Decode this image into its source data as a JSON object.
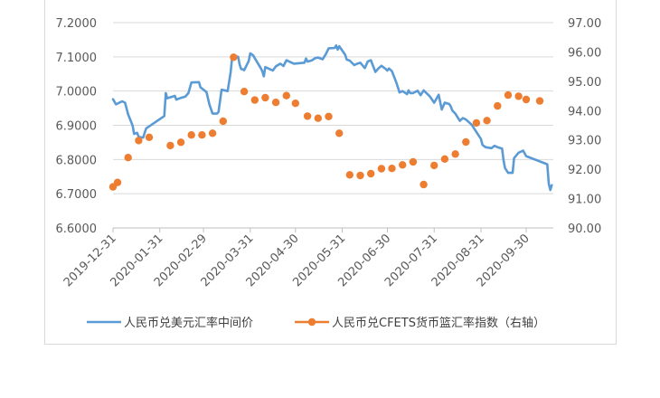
{
  "chart_data": {
    "type": "line",
    "x_ticks": [
      "2019-12-31",
      "2020-01-31",
      "2020-02-29",
      "2020-03-31",
      "2020-04-30",
      "2020-05-31",
      "2020-06-30",
      "2020-07-31",
      "2020-08-31",
      "2020-09-30"
    ],
    "y_left": {
      "ticks": [
        "6.6000",
        "6.7000",
        "6.8000",
        "6.9000",
        "7.0000",
        "7.1000",
        "7.2000"
      ],
      "ylim": [
        6.6,
        7.2
      ]
    },
    "y_right": {
      "ticks": [
        "90.00",
        "91.00",
        "92.00",
        "93.00",
        "94.00",
        "95.00",
        "96.00",
        "97.00"
      ],
      "ylim": [
        90,
        97
      ]
    },
    "series": [
      {
        "name": "人民币兑美元汇率中间价",
        "type": "line",
        "axis": "left",
        "color": "#5b9bd5",
        "points": [
          [
            "2019-12-31",
            6.976
          ],
          [
            "2020-01-02",
            6.961
          ],
          [
            "2020-01-06",
            6.97
          ],
          [
            "2020-01-08",
            6.966
          ],
          [
            "2020-01-10",
            6.932
          ],
          [
            "2020-01-13",
            6.899
          ],
          [
            "2020-01-14",
            6.875
          ],
          [
            "2020-01-16",
            6.878
          ],
          [
            "2020-01-17",
            6.866
          ],
          [
            "2020-01-20",
            6.864
          ],
          [
            "2020-01-21",
            6.878
          ],
          [
            "2020-01-22",
            6.891
          ],
          [
            "2020-02-03",
            6.927
          ],
          [
            "2020-02-04",
            6.994
          ],
          [
            "2020-02-05",
            6.979
          ],
          [
            "2020-02-10",
            6.986
          ],
          [
            "2020-02-11",
            6.975
          ],
          [
            "2020-02-14",
            6.98
          ],
          [
            "2020-02-17",
            6.984
          ],
          [
            "2020-02-19",
            6.994
          ],
          [
            "2020-02-21",
            7.025
          ],
          [
            "2020-02-26",
            7.026
          ],
          [
            "2020-02-27",
            7.011
          ],
          [
            "2020-03-02",
            6.997
          ],
          [
            "2020-03-04",
            6.96
          ],
          [
            "2020-03-06",
            6.934
          ],
          [
            "2020-03-09",
            6.934
          ],
          [
            "2020-03-10",
            6.939
          ],
          [
            "2020-03-12",
            7.004
          ],
          [
            "2020-03-16",
            7.0
          ],
          [
            "2020-03-18",
            7.055
          ],
          [
            "2020-03-19",
            7.099
          ],
          [
            "2020-03-20",
            7.102
          ],
          [
            "2020-03-23",
            7.1
          ],
          [
            "2020-03-24",
            7.077
          ],
          [
            "2020-03-25",
            7.064
          ],
          [
            "2020-03-26",
            7.064
          ],
          [
            "2020-03-27",
            7.061
          ],
          [
            "2020-03-30",
            7.088
          ],
          [
            "2020-03-31",
            7.11
          ],
          [
            "2020-04-02",
            7.104
          ],
          [
            "2020-04-03",
            7.096
          ],
          [
            "2020-04-07",
            7.067
          ],
          [
            "2020-04-08",
            7.058
          ],
          [
            "2020-04-09",
            7.043
          ],
          [
            "2020-04-10",
            7.07
          ],
          [
            "2020-04-14",
            7.062
          ],
          [
            "2020-04-15",
            7.06
          ],
          [
            "2020-04-17",
            7.072
          ],
          [
            "2020-04-20",
            7.08
          ],
          [
            "2020-04-22",
            7.073
          ],
          [
            "2020-04-24",
            7.09
          ],
          [
            "2020-04-27",
            7.084
          ],
          [
            "2020-04-29",
            7.08
          ],
          [
            "2020-05-06",
            7.083
          ],
          [
            "2020-05-07",
            7.095
          ],
          [
            "2020-05-08",
            7.086
          ],
          [
            "2020-05-11",
            7.09
          ],
          [
            "2020-05-13",
            7.096
          ],
          [
            "2020-05-15",
            7.098
          ],
          [
            "2020-05-18",
            7.093
          ],
          [
            "2020-05-20",
            7.107
          ],
          [
            "2020-05-22",
            7.125
          ],
          [
            "2020-05-26",
            7.126
          ],
          [
            "2020-05-27",
            7.133
          ],
          [
            "2020-05-28",
            7.121
          ],
          [
            "2020-05-29",
            7.131
          ],
          [
            "2020-06-01",
            7.112
          ],
          [
            "2020-06-02",
            7.106
          ],
          [
            "2020-06-03",
            7.092
          ],
          [
            "2020-06-05",
            7.089
          ],
          [
            "2020-06-08",
            7.076
          ],
          [
            "2020-06-10",
            7.08
          ],
          [
            "2020-06-12",
            7.083
          ],
          [
            "2020-06-15",
            7.067
          ],
          [
            "2020-06-17",
            7.087
          ],
          [
            "2020-06-19",
            7.09
          ],
          [
            "2020-06-22",
            7.056
          ],
          [
            "2020-06-24",
            7.066
          ],
          [
            "2020-06-26",
            7.074
          ],
          [
            "2020-06-29",
            7.064
          ],
          [
            "2020-06-30",
            7.06
          ],
          [
            "2020-07-01",
            7.066
          ],
          [
            "2020-07-03",
            7.058
          ],
          [
            "2020-07-06",
            7.024
          ],
          [
            "2020-07-07",
            7.01
          ],
          [
            "2020-07-08",
            6.996
          ],
          [
            "2020-07-10",
            7.0
          ],
          [
            "2020-07-13",
            6.991
          ],
          [
            "2020-07-14",
            7.002
          ],
          [
            "2020-07-15",
            6.994
          ],
          [
            "2020-07-17",
            6.994
          ],
          [
            "2020-07-20",
            7.001
          ],
          [
            "2020-07-22",
            6.988
          ],
          [
            "2020-07-24",
            7.002
          ],
          [
            "2020-07-28",
            6.985
          ],
          [
            "2020-07-31",
            6.966
          ],
          [
            "2020-08-03",
            6.989
          ],
          [
            "2020-08-05",
            6.946
          ],
          [
            "2020-08-07",
            6.966
          ],
          [
            "2020-08-10",
            6.962
          ],
          [
            "2020-08-11",
            6.955
          ],
          [
            "2020-08-12",
            6.943
          ],
          [
            "2020-08-14",
            6.934
          ],
          [
            "2020-08-17",
            6.913
          ],
          [
            "2020-08-19",
            6.921
          ],
          [
            "2020-08-21",
            6.917
          ],
          [
            "2020-08-25",
            6.901
          ],
          [
            "2020-08-27",
            6.887
          ],
          [
            "2020-08-31",
            6.86
          ],
          [
            "2020-09-01",
            6.843
          ],
          [
            "2020-09-03",
            6.836
          ],
          [
            "2020-09-07",
            6.833
          ],
          [
            "2020-09-09",
            6.84
          ],
          [
            "2020-09-11",
            6.836
          ],
          [
            "2020-09-14",
            6.832
          ],
          [
            "2020-09-15",
            6.797
          ],
          [
            "2020-09-16",
            6.775
          ],
          [
            "2020-09-18",
            6.761
          ],
          [
            "2020-09-21",
            6.761
          ],
          [
            "2020-09-22",
            6.804
          ],
          [
            "2020-09-25",
            6.82
          ],
          [
            "2020-09-28",
            6.826
          ],
          [
            "2020-09-30",
            6.81
          ],
          [
            "2020-10-14",
            6.786
          ],
          [
            "2020-10-15",
            6.729
          ],
          [
            "2020-10-16",
            6.711
          ],
          [
            "2020-10-17",
            6.725
          ]
        ]
      },
      {
        "name": "人民币兑CFETS货币篮汇率指数（右轴）",
        "type": "scatter",
        "axis": "right",
        "color": "#ed7d31",
        "points": [
          [
            "2019-12-31",
            91.4
          ],
          [
            "2020-01-03",
            91.55
          ],
          [
            "2020-01-10",
            92.4
          ],
          [
            "2020-01-17",
            92.98
          ],
          [
            "2020-01-24",
            93.09
          ],
          [
            "2020-02-07",
            92.81
          ],
          [
            "2020-02-14",
            92.92
          ],
          [
            "2020-02-21",
            93.17
          ],
          [
            "2020-02-28",
            93.17
          ],
          [
            "2020-03-06",
            93.23
          ],
          [
            "2020-03-13",
            93.64
          ],
          [
            "2020-03-20",
            95.82
          ],
          [
            "2020-03-27",
            94.65
          ],
          [
            "2020-04-03",
            94.36
          ],
          [
            "2020-04-10",
            94.44
          ],
          [
            "2020-04-17",
            94.28
          ],
          [
            "2020-04-24",
            94.51
          ],
          [
            "2020-04-30",
            94.25
          ],
          [
            "2020-05-08",
            93.81
          ],
          [
            "2020-05-15",
            93.74
          ],
          [
            "2020-05-22",
            93.8
          ],
          [
            "2020-05-29",
            93.23
          ],
          [
            "2020-06-05",
            91.81
          ],
          [
            "2020-06-12",
            91.79
          ],
          [
            "2020-06-19",
            91.85
          ],
          [
            "2020-06-26",
            92.02
          ],
          [
            "2020-07-03",
            92.03
          ],
          [
            "2020-07-10",
            92.15
          ],
          [
            "2020-07-17",
            92.25
          ],
          [
            "2020-07-24",
            91.48
          ],
          [
            "2020-07-31",
            92.13
          ],
          [
            "2020-08-07",
            92.35
          ],
          [
            "2020-08-14",
            92.52
          ],
          [
            "2020-08-21",
            92.93
          ],
          [
            "2020-08-28",
            93.58
          ],
          [
            "2020-09-04",
            93.66
          ],
          [
            "2020-09-11",
            94.16
          ],
          [
            "2020-09-18",
            94.53
          ],
          [
            "2020-09-25",
            94.49
          ],
          [
            "2020-09-30",
            94.38
          ],
          [
            "2020-10-09",
            94.33
          ]
        ]
      }
    ],
    "x_range": [
      "2019-12-31",
      "2020-10-18"
    ],
    "grid": "horizontal",
    "legend": "bottom"
  }
}
